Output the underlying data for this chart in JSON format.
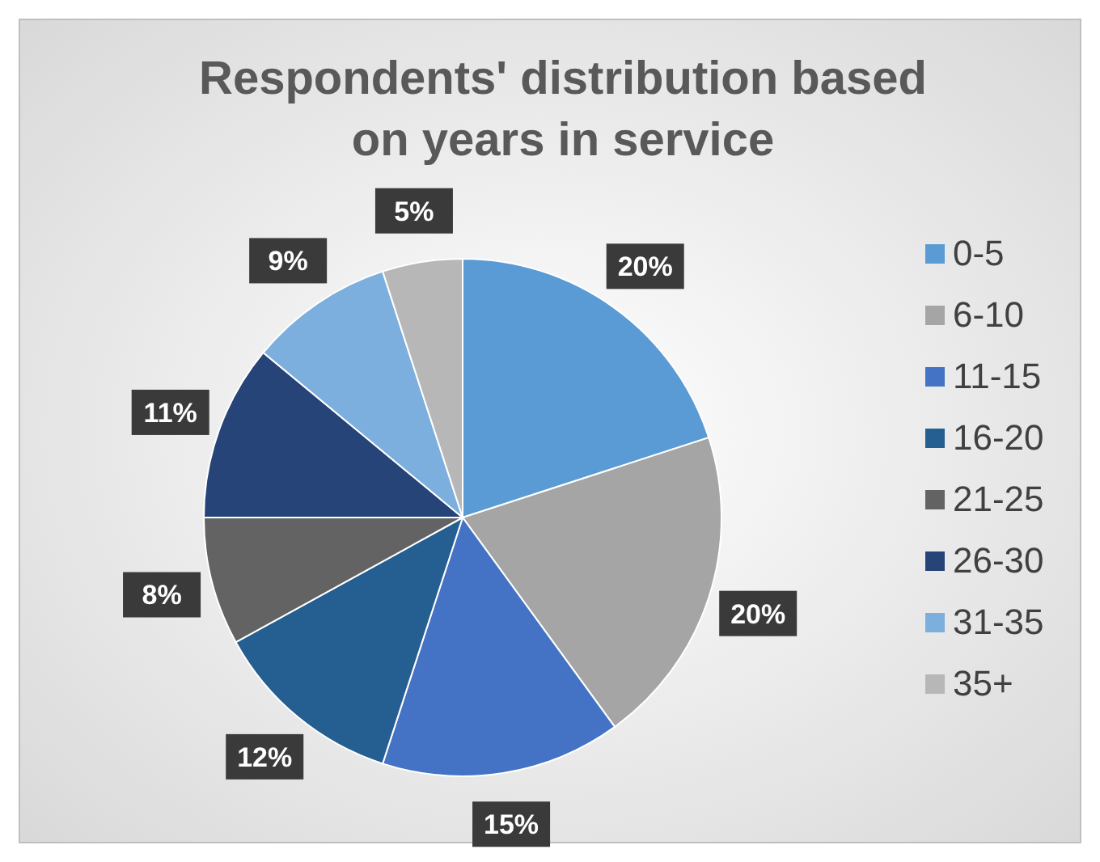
{
  "chart_data": {
    "type": "pie",
    "title": "Respondents' distribution based on years in service",
    "categories": [
      "0-5",
      "6-10",
      "11-15",
      "16-20",
      "21-25",
      "26-30",
      "31-35",
      "35+"
    ],
    "values": [
      20,
      20,
      15,
      12,
      8,
      11,
      9,
      5
    ],
    "colors": [
      "#5b9bd5",
      "#a5a5a5",
      "#4472c4",
      "#255e91",
      "#636363",
      "#264478",
      "#7cafdd",
      "#b7b7b7"
    ],
    "value_labels": [
      "20%",
      "20%",
      "15%",
      "12%",
      "8%",
      "11%",
      "9%",
      "5%"
    ],
    "legend": "right"
  }
}
